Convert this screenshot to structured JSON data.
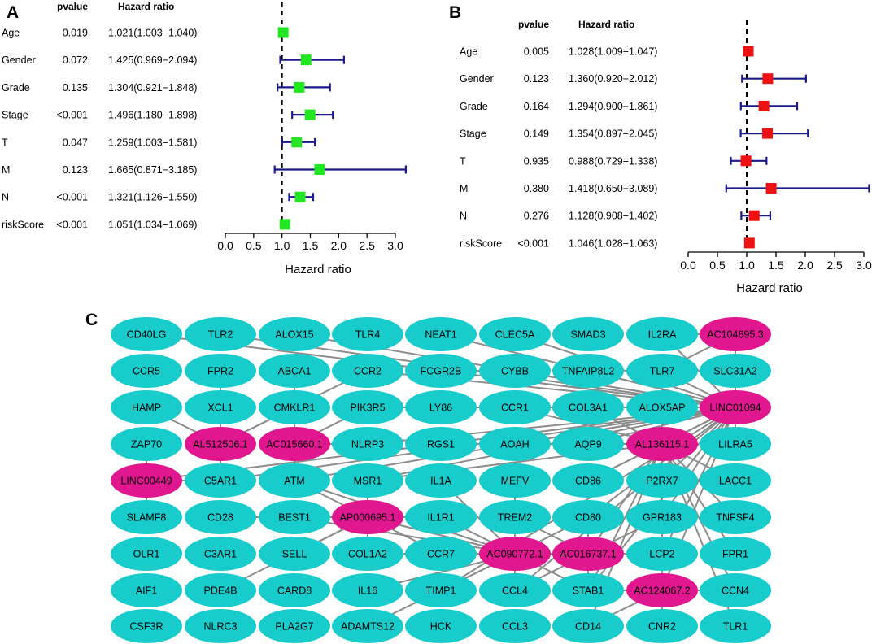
{
  "chart_data": [
    {
      "type": "forest",
      "panel": "A",
      "columns": {
        "pvalue": "pvalue",
        "hr": "Hazard ratio"
      },
      "xlabel": "Hazard ratio",
      "xlim": [
        0,
        3.0
      ],
      "ticks": [
        "0.0",
        "0.5",
        "1.0",
        "1.5",
        "2.0",
        "2.5",
        "3.0"
      ],
      "reference_line": 1.0,
      "color": "#22e622",
      "ci_color": "#1a1a8c",
      "rows": [
        {
          "label": "Age",
          "pvalue": "0.019",
          "hr_text": "1.021(1.003−1.040)",
          "hr": 1.021,
          "lo": 1.003,
          "hi": 1.04
        },
        {
          "label": "Gender",
          "pvalue": "0.072",
          "hr_text": "1.425(0.969−2.094)",
          "hr": 1.425,
          "lo": 0.969,
          "hi": 2.094
        },
        {
          "label": "Grade",
          "pvalue": "0.135",
          "hr_text": "1.304(0.921−1.848)",
          "hr": 1.304,
          "lo": 0.921,
          "hi": 1.848
        },
        {
          "label": "Stage",
          "pvalue": "<0.001",
          "hr_text": "1.496(1.180−1.898)",
          "hr": 1.496,
          "lo": 1.18,
          "hi": 1.898
        },
        {
          "label": "T",
          "pvalue": "0.047",
          "hr_text": "1.259(1.003−1.581)",
          "hr": 1.259,
          "lo": 1.003,
          "hi": 1.581
        },
        {
          "label": "M",
          "pvalue": "0.123",
          "hr_text": "1.665(0.871−3.185)",
          "hr": 1.665,
          "lo": 0.871,
          "hi": 3.185
        },
        {
          "label": "N",
          "pvalue": "<0.001",
          "hr_text": "1.321(1.126−1.550)",
          "hr": 1.321,
          "lo": 1.126,
          "hi": 1.55
        },
        {
          "label": "riskScore",
          "pvalue": "<0.001",
          "hr_text": "1.051(1.034−1.069)",
          "hr": 1.051,
          "lo": 1.034,
          "hi": 1.069
        }
      ]
    },
    {
      "type": "forest",
      "panel": "B",
      "columns": {
        "pvalue": "pvalue",
        "hr": "Hazard ratio"
      },
      "xlabel": "Hazard ratio",
      "xlim": [
        0,
        3.0
      ],
      "ticks": [
        "0.0",
        "0.5",
        "1.0",
        "1.5",
        "2.0",
        "2.5",
        "3.0"
      ],
      "reference_line": 1.0,
      "color": "#ee1111",
      "ci_color": "#1a1a8c",
      "rows": [
        {
          "label": "Age",
          "pvalue": "0.005",
          "hr_text": "1.028(1.009−1.047)",
          "hr": 1.028,
          "lo": 1.009,
          "hi": 1.047
        },
        {
          "label": "Gender",
          "pvalue": "0.123",
          "hr_text": "1.360(0.920−2.012)",
          "hr": 1.36,
          "lo": 0.92,
          "hi": 2.012
        },
        {
          "label": "Grade",
          "pvalue": "0.164",
          "hr_text": "1.294(0.900−1.861)",
          "hr": 1.294,
          "lo": 0.9,
          "hi": 1.861
        },
        {
          "label": "Stage",
          "pvalue": "0.149",
          "hr_text": "1.354(0.897−2.045)",
          "hr": 1.354,
          "lo": 0.897,
          "hi": 2.045
        },
        {
          "label": "T",
          "pvalue": "0.935",
          "hr_text": "0.988(0.729−1.338)",
          "hr": 0.988,
          "lo": 0.729,
          "hi": 1.338
        },
        {
          "label": "M",
          "pvalue": "0.380",
          "hr_text": "1.418(0.650−3.089)",
          "hr": 1.418,
          "lo": 0.65,
          "hi": 3.089
        },
        {
          "label": "N",
          "pvalue": "0.276",
          "hr_text": "1.128(0.908−1.402)",
          "hr": 1.128,
          "lo": 0.908,
          "hi": 1.402
        },
        {
          "label": "riskScore",
          "pvalue": "<0.001",
          "hr_text": "1.046(1.028−1.063)",
          "hr": 1.046,
          "lo": 1.028,
          "hi": 1.063
        }
      ]
    },
    {
      "type": "network",
      "panel": "C",
      "colors": {
        "mrna": "#19cccc",
        "lncrna": "#e0178f",
        "edge": "#8c8c8c"
      },
      "grid": [
        [
          "CD40LG",
          "TLR2",
          "ALOX15",
          "TLR4",
          "NEAT1",
          "CLEC5A",
          "SMAD3",
          "IL2RA",
          "AC104695.3"
        ],
        [
          "CCR5",
          "FPR2",
          "ABCA1",
          "CCR2",
          "FCGR2B",
          "CYBB",
          "TNFAIP8L2",
          "TLR7",
          "SLC31A2"
        ],
        [
          "HAMP",
          "XCL1",
          "CMKLR1",
          "PIK3R5",
          "LY86",
          "CCR1",
          "COL3A1",
          "ALOX5AP",
          "LINC01094"
        ],
        [
          "ZAP70",
          "AL512506.1",
          "AC015660.1",
          "NLRP3",
          "RGS1",
          "AOAH",
          "AQP9",
          "AL136115.1",
          "LILRA5"
        ],
        [
          "LINC00449",
          "C5AR1",
          "ATM",
          "MSR1",
          "IL1A",
          "MEFV",
          "CD86",
          "P2RX7",
          "LACC1"
        ],
        [
          "SLAMF8",
          "CD28",
          "BEST1",
          "AP000695.1",
          "IL1R1",
          "TREM2",
          "CD80",
          "GPR183",
          "TNFSF4"
        ],
        [
          "OLR1",
          "C3AR1",
          "SELL",
          "COL1A2",
          "CCR7",
          "AC090772.1",
          "AC016737.1",
          "LCP2",
          "FPR1"
        ],
        [
          "AIF1",
          "PDE4B",
          "CARD8",
          "IL16",
          "TIMP1",
          "CCL4",
          "STAB1",
          "AC124067.2",
          "CCN4"
        ],
        [
          "CSF3R",
          "NLRC3",
          "PLA2G7",
          "ADAMTS12",
          "HCK",
          "CCL3",
          "CD14",
          "CNR2",
          "TLR1"
        ]
      ],
      "lncrnas": [
        "AC104695.3",
        "LINC01094",
        "AL512506.1",
        "AC015660.1",
        "AL136115.1",
        "LINC00449",
        "AP000695.1",
        "AC090772.1",
        "AC016737.1",
        "AC124067.2"
      ],
      "edges": [
        [
          "LINC01094",
          "CD40LG"
        ],
        [
          "LINC01094",
          "TLR2"
        ],
        [
          "LINC01094",
          "ALOX15"
        ],
        [
          "LINC01094",
          "NEAT1"
        ],
        [
          "LINC01094",
          "CLEC5A"
        ],
        [
          "LINC01094",
          "CCR2"
        ],
        [
          "LINC01094",
          "FCGR2B"
        ],
        [
          "LINC01094",
          "CYBB"
        ],
        [
          "LINC01094",
          "TNFAIP8L2"
        ],
        [
          "LINC01094",
          "TLR7"
        ],
        [
          "LINC01094",
          "PIK3R5"
        ],
        [
          "LINC01094",
          "LY86"
        ],
        [
          "LINC01094",
          "CCR1"
        ],
        [
          "LINC01094",
          "COL3A1"
        ],
        [
          "LINC01094",
          "ALOX5AP"
        ],
        [
          "LINC01094",
          "NLRP3"
        ],
        [
          "LINC01094",
          "AOAH"
        ],
        [
          "LINC01094",
          "AQP9"
        ],
        [
          "LINC01094",
          "CD86"
        ],
        [
          "LINC01094",
          "P2RX7"
        ],
        [
          "LINC01094",
          "ATM"
        ],
        [
          "LINC01094",
          "LINC00449"
        ],
        [
          "LINC01094",
          "C5AR1"
        ],
        [
          "LINC01094",
          "MSR1"
        ],
        [
          "LINC01094",
          "CD80"
        ],
        [
          "LINC01094",
          "GPR183"
        ],
        [
          "LINC01094",
          "LCP2"
        ],
        [
          "LINC01094",
          "STAB1"
        ],
        [
          "LINC01094",
          "CCL4"
        ],
        [
          "LINC01094",
          "AC104695.3"
        ],
        [
          "LINC01094",
          "SLC31A2"
        ],
        [
          "LINC01094",
          "LILRA5"
        ],
        [
          "LINC01094",
          "AL136115.1"
        ],
        [
          "LINC01094",
          "IL2RA"
        ],
        [
          "LINC01094",
          "TIMP1"
        ],
        [
          "LINC01094",
          "AC124067.2"
        ],
        [
          "AC104695.3",
          "IL2RA"
        ],
        [
          "AC104695.3",
          "TLR7"
        ],
        [
          "AC104695.3",
          "SLC31A2"
        ],
        [
          "AL512506.1",
          "CCR2"
        ],
        [
          "AL512506.1",
          "CMKLR1"
        ],
        [
          "AL512506.1",
          "XCL1"
        ],
        [
          "AL512506.1",
          "FPR2"
        ],
        [
          "AL512506.1",
          "C5AR1"
        ],
        [
          "AL512506.1",
          "HAMP"
        ],
        [
          "AC015660.1",
          "NLRP3"
        ],
        [
          "AC015660.1",
          "PIK3R5"
        ],
        [
          "AC015660.1",
          "CMKLR1"
        ],
        [
          "AC015660.1",
          "ABCA1"
        ],
        [
          "AC015660.1",
          "ATM"
        ],
        [
          "AL136115.1",
          "AQP9"
        ],
        [
          "AL136115.1",
          "P2RX7"
        ],
        [
          "AL136115.1",
          "ALOX5AP"
        ],
        [
          "AL136115.1",
          "TLR7"
        ],
        [
          "AL136115.1",
          "CD86"
        ],
        [
          "AL136115.1",
          "GPR183"
        ],
        [
          "AL136115.1",
          "LILRA5"
        ],
        [
          "AL136115.1",
          "LACC1"
        ],
        [
          "AL136115.1",
          "TNFSF4"
        ],
        [
          "AL136115.1",
          "AC016737.1"
        ],
        [
          "AL136115.1",
          "LCP2"
        ],
        [
          "AL136115.1",
          "FPR1"
        ],
        [
          "AL136115.1",
          "CCN4"
        ],
        [
          "AL136115.1",
          "STAB1"
        ],
        [
          "AL136115.1",
          "CD14"
        ],
        [
          "AL136115.1",
          "CNR2"
        ],
        [
          "AL136115.1",
          "TLR1"
        ],
        [
          "AL136115.1",
          "COL3A1"
        ],
        [
          "AL136115.1",
          "CCR1"
        ],
        [
          "AL136115.1",
          "RGS1"
        ],
        [
          "AL136115.1",
          "MSR1"
        ],
        [
          "LINC00449",
          "C5AR1"
        ],
        [
          "LINC00449",
          "ZAP70"
        ],
        [
          "LINC00449",
          "SLAMF8"
        ],
        [
          "AP000695.1",
          "MSR1"
        ],
        [
          "AP000695.1",
          "BEST1"
        ],
        [
          "AP000695.1",
          "IL1R1"
        ],
        [
          "AP000695.1",
          "COL1A2"
        ],
        [
          "AP000695.1",
          "SELL"
        ],
        [
          "AP000695.1",
          "CCR7"
        ],
        [
          "AP000695.1",
          "ATM"
        ],
        [
          "AP000695.1",
          "CD28"
        ],
        [
          "AP000695.1",
          "PDE4B"
        ],
        [
          "AP000695.1",
          "AC090772.1"
        ],
        [
          "AC090772.1",
          "BEST1"
        ],
        [
          "AC090772.1",
          "IL1R1"
        ],
        [
          "AC090772.1",
          "CCR7"
        ],
        [
          "AC090772.1",
          "TREM2"
        ],
        [
          "AC090772.1",
          "CD80"
        ],
        [
          "AC090772.1",
          "COL1A2"
        ],
        [
          "AC090772.1",
          "TIMP1"
        ],
        [
          "AC090772.1",
          "CCL4"
        ],
        [
          "AC090772.1",
          "MEFV"
        ],
        [
          "AC090772.1",
          "IL16"
        ],
        [
          "AC090772.1",
          "ADAMTS12"
        ],
        [
          "AC090772.1",
          "STAB1"
        ],
        [
          "AC090772.1",
          "IL1A"
        ],
        [
          "AC090772.1",
          "ATM"
        ],
        [
          "AC016737.1",
          "CD80"
        ],
        [
          "AC016737.1",
          "TREM2"
        ],
        [
          "AC016737.1",
          "CCR7"
        ],
        [
          "AC016737.1",
          "LCP2"
        ],
        [
          "AC016737.1",
          "CCL4"
        ],
        [
          "AC016737.1",
          "STAB1"
        ],
        [
          "AC016737.1",
          "GPR183"
        ],
        [
          "AC124067.2",
          "LCP2"
        ],
        [
          "AC124067.2",
          "STAB1"
        ],
        [
          "AC124067.2",
          "CNR2"
        ],
        [
          "AC124067.2",
          "CD14"
        ],
        [
          "AC124067.2",
          "GPR183"
        ],
        [
          "AC124067.2",
          "CCN4"
        ]
      ]
    }
  ]
}
